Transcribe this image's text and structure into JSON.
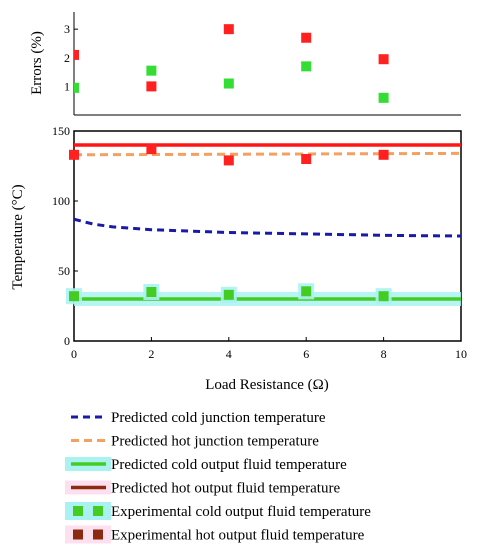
{
  "chart_data": [
    {
      "type": "scatter",
      "ylabel": "Errors (%)",
      "xlim": [
        0,
        10
      ],
      "ylim": [
        0,
        3.6
      ],
      "yticks": [
        "1",
        "2",
        "3"
      ],
      "series": [
        {
          "color": "#ff2020",
          "marker": "square",
          "x": [
            0,
            2,
            4,
            6,
            8
          ],
          "y": [
            2.1,
            1.0,
            3.0,
            2.7,
            1.95
          ]
        },
        {
          "color": "#33dd33",
          "marker": "square",
          "x": [
            0,
            2,
            4,
            6,
            8
          ],
          "y": [
            0.95,
            1.55,
            1.1,
            1.7,
            0.6
          ]
        }
      ],
      "grid": false
    },
    {
      "type": "line",
      "xlabel": "Load Resistance (Ω)",
      "ylabel": "Temperature (°C)",
      "xlim": [
        0,
        10
      ],
      "ylim": [
        0,
        150
      ],
      "xticks": [
        "0",
        "2",
        "4",
        "6",
        "8",
        "10"
      ],
      "yticks": [
        "0",
        "50",
        "100",
        "150"
      ],
      "series": [
        {
          "name": "Predicted cold junction temperature",
          "style": "dashed",
          "color": "#1a1aa8",
          "x": [
            0,
            0.5,
            1,
            1.5,
            2,
            3,
            4,
            5,
            6,
            7,
            8,
            9,
            10
          ],
          "y": [
            87,
            83.5,
            81.5,
            80.5,
            79.5,
            78.5,
            77.5,
            77,
            76.5,
            76,
            75.5,
            75.2,
            75
          ]
        },
        {
          "name": "Predicted hot junction temperature",
          "style": "dashed",
          "color": "#f4a060",
          "x": [
            0,
            10
          ],
          "y": [
            133,
            134
          ]
        },
        {
          "name": "Predicted cold output fluid temperature",
          "style": "solid",
          "color": "#44cc22",
          "x": [
            0,
            10
          ],
          "y": [
            30,
            30
          ]
        },
        {
          "name": "Predicted hot output fluid temperature",
          "style": "solid",
          "color": "#ff1515",
          "x": [
            0,
            10
          ],
          "y": [
            140,
            140
          ]
        },
        {
          "name": "Experimental cold output fluid temperature",
          "style": "markers",
          "color": "#44cc22",
          "x": [
            0,
            2,
            4,
            6,
            8
          ],
          "y": [
            32,
            35,
            33,
            35.5,
            32
          ]
        },
        {
          "name": "Experimental hot output fluid temperature",
          "style": "markers",
          "color": "#ff2020",
          "x": [
            0,
            2,
            4,
            6,
            8
          ],
          "y": [
            133,
            137,
            129,
            130,
            133
          ]
        }
      ],
      "legend": "bottom",
      "grid": false
    }
  ],
  "colors": {
    "cold_band": "#aaf2f2",
    "hot_band": "#fde0f0",
    "legend_hot_marker": "#8b2a10"
  }
}
